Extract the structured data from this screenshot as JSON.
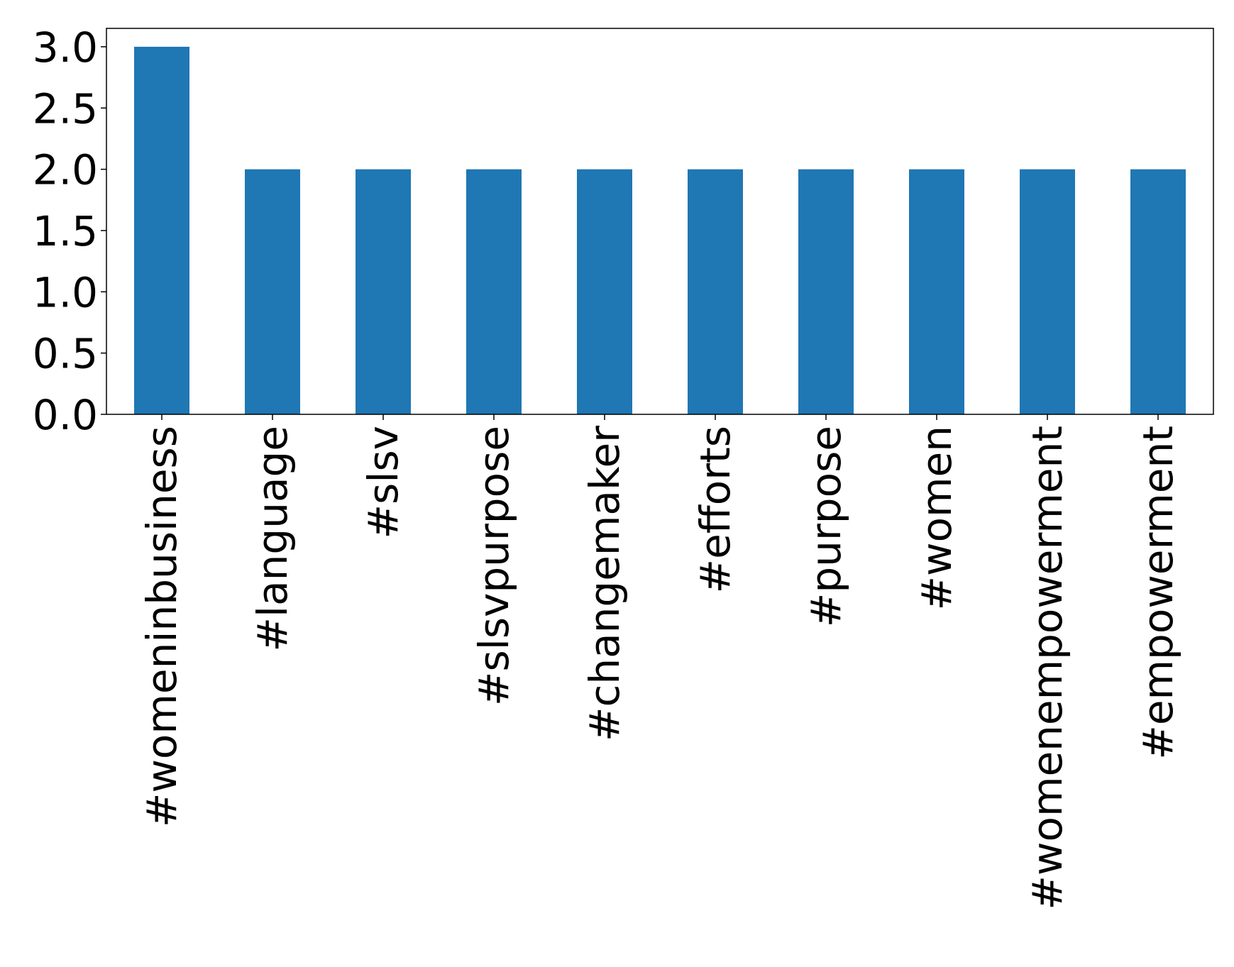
{
  "chart_data": {
    "type": "bar",
    "title": "",
    "xlabel": "",
    "ylabel": "",
    "categories": [
      "#womeninbusiness",
      "#language",
      "#slsv",
      "#slsvpurpose",
      "#changemaker",
      "#efforts",
      "#purpose",
      "#women",
      "#womenempowerment",
      "#empowerment"
    ],
    "values": [
      3,
      2,
      2,
      2,
      2,
      2,
      2,
      2,
      2,
      2
    ],
    "ylim": [
      0,
      3.15
    ],
    "yticks": [
      "0.0",
      "0.5",
      "1.0",
      "1.5",
      "2.0",
      "2.5",
      "3.0"
    ],
    "bar_color": "#1f77b4",
    "grid": false,
    "legend": "none"
  }
}
